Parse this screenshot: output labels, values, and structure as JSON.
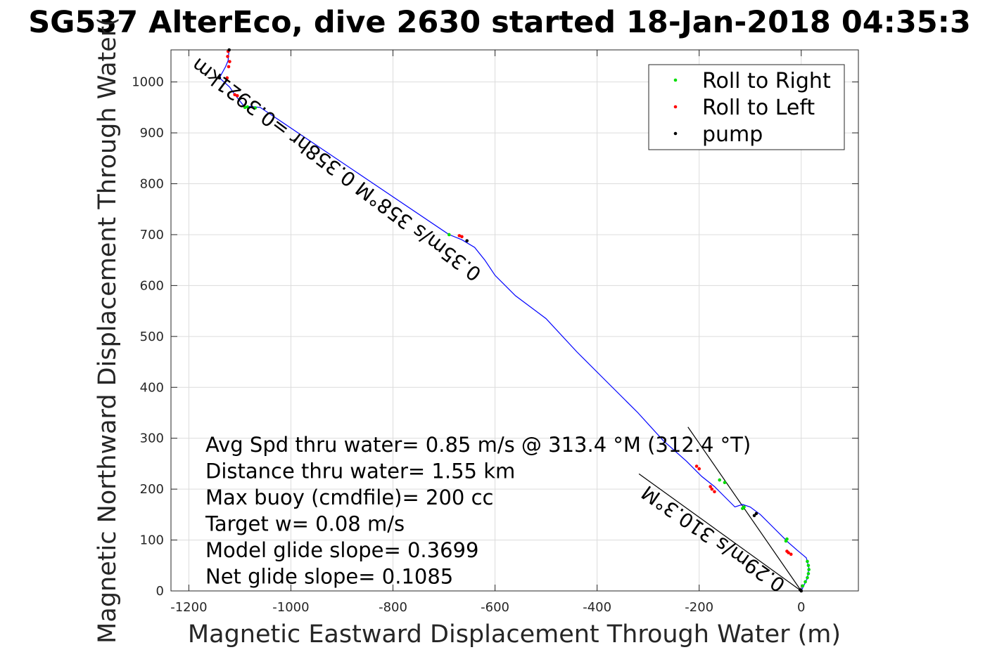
{
  "chart_data": {
    "type": "line",
    "title": "SG537 AlterEco, dive 2630 started 18-Jan-2018 04:35:3",
    "xlabel": "Magnetic Eastward Displacement Through Water (m)",
    "ylabel": "Magnetic Northward Displacement Through Water(",
    "xlim": [
      -1235,
      112
    ],
    "ylim": [
      0,
      1063
    ],
    "xticks": [
      -1200,
      -1000,
      -800,
      -600,
      -400,
      -200,
      0
    ],
    "yticks": [
      0,
      100,
      200,
      300,
      400,
      500,
      600,
      700,
      800,
      900,
      1000
    ],
    "grid": true,
    "legend_position": "top-right",
    "track": {
      "color": "#0000ff",
      "x": [
        0,
        12,
        15,
        10,
        -8,
        -25,
        -55,
        -80,
        -100,
        -115,
        -130,
        -150,
        -170,
        -195,
        -225,
        -270,
        -320,
        -380,
        -440,
        -500,
        -560,
        -600,
        -620,
        -640,
        -665,
        -690,
        -1060,
        -1080,
        -1090,
        -1110,
        -1120,
        -1140,
        -1128,
        -1123,
        -1122,
        -1121
      ],
      "y": [
        0,
        25,
        45,
        65,
        80,
        95,
        125,
        150,
        165,
        170,
        165,
        185,
        205,
        225,
        255,
        295,
        350,
        410,
        470,
        535,
        580,
        620,
        650,
        675,
        690,
        700,
        950,
        952,
        950,
        975,
        990,
        1008,
        1030,
        1042,
        1055,
        1063
      ]
    },
    "series": [
      {
        "name": "Roll to Right",
        "color": "#00dd00",
        "x": [
          3,
          8,
          12,
          14,
          15,
          14,
          12,
          -30,
          -28,
          -160,
          -150,
          -115,
          -112,
          -1090,
          -1085,
          -1070,
          -690
        ],
        "y": [
          10,
          18,
          26,
          34,
          42,
          50,
          58,
          98,
          102,
          218,
          213,
          162,
          165,
          950,
          951,
          949,
          700
        ]
      },
      {
        "name": "Roll to Left",
        "color": "#ff0000",
        "x": [
          -20,
          -25,
          -28,
          -170,
          -175,
          -178,
          -200,
          -205,
          -670,
          -665,
          -1110,
          -1105,
          -1125,
          -1122,
          -1120,
          -1124,
          -1123
        ],
        "y": [
          72,
          75,
          78,
          195,
          200,
          205,
          240,
          245,
          698,
          696,
          975,
          973,
          1008,
          1030,
          1040,
          1050,
          1060
        ]
      },
      {
        "name": "pump",
        "color": "#000000",
        "x": [
          0,
          -2,
          -88,
          -92,
          -655,
          -1140,
          -1121
        ],
        "y": [
          0,
          2,
          152,
          148,
          688,
          1008,
          1063
        ]
      }
    ],
    "guide_lines": [
      {
        "x": [
          0,
          -222
        ],
        "y": [
          0,
          322
        ]
      },
      {
        "x": [
          0,
          -318
        ],
        "y": [
          0,
          230
        ]
      }
    ],
    "annotations": [
      {
        "text": "Avg Spd thru water=  0.85 m/s @ 313.4 °M (312.4 °T)"
      },
      {
        "text": "Distance thru water=  1.55 km"
      },
      {
        "text": "Max buoy (cmdfile)= 200 cc"
      },
      {
        "text": "Target w= 0.08 m/s"
      },
      {
        "text": "Model glide slope= 0.3699"
      },
      {
        "text": "Net glide slope= 0.1085"
      }
    ],
    "rotated_labels": [
      {
        "text": "0.29m/s 310.3°M"
      },
      {
        "text": "0.35m/s 358°M 0.358hr =0.3921km"
      }
    ]
  }
}
